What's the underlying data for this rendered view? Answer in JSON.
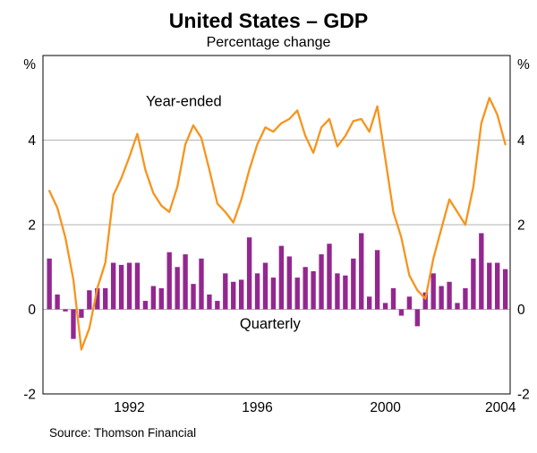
{
  "chart_data": {
    "type": "bar+line",
    "title": "United States – GDP",
    "subtitle": "Percentage change",
    "source": "Source: Thomson Financial",
    "x_start": 1990,
    "x_step": 0.25,
    "x_axis": {
      "min": 1989.8,
      "max": 2004.4,
      "ticks": [
        {
          "x": 1992.5,
          "label": "1992"
        },
        {
          "x": 1996.5,
          "label": "1996"
        },
        {
          "x": 2000.5,
          "label": "2000"
        },
        {
          "x": 2004.1,
          "label": "2004"
        }
      ]
    },
    "y_axis": {
      "min": -2,
      "max": 6,
      "unit": "%",
      "grid_values": [
        0,
        2,
        4
      ],
      "tick_values": [
        4,
        2,
        0,
        -2
      ]
    },
    "colors": {
      "bar": "#93278F",
      "line": "#F7941D",
      "grid": "#b3b3b3",
      "frame": "#000000",
      "text": "#000000"
    },
    "series": [
      {
        "name": "Quarterly",
        "type": "bar",
        "color": "#93278F",
        "label_pos": {
          "x": 1996.9,
          "y": -0.45
        },
        "values": [
          1.2,
          0.35,
          -0.05,
          -0.7,
          -0.2,
          0.45,
          0.5,
          0.5,
          1.1,
          1.05,
          1.1,
          1.1,
          0.2,
          0.55,
          0.5,
          1.35,
          1.0,
          1.3,
          0.6,
          1.2,
          0.35,
          0.2,
          0.85,
          0.65,
          0.7,
          1.7,
          0.85,
          1.1,
          0.75,
          1.5,
          1.25,
          0.75,
          1.0,
          0.9,
          1.3,
          1.55,
          0.85,
          0.8,
          1.2,
          1.8,
          0.3,
          1.4,
          0.15,
          0.5,
          -0.15,
          0.3,
          -0.4,
          0.4,
          0.85,
          0.55,
          0.65,
          0.15,
          0.5,
          1.2,
          1.8,
          1.1,
          1.1,
          0.95
        ]
      },
      {
        "name": "Year-ended",
        "type": "line",
        "color": "#F7941D",
        "label_pos": {
          "x": 1994.2,
          "y": 4.8
        },
        "values": [
          2.8,
          2.4,
          1.7,
          0.7,
          -0.95,
          -0.45,
          0.5,
          1.1,
          2.7,
          3.1,
          3.6,
          4.15,
          3.3,
          2.75,
          2.45,
          2.3,
          2.9,
          3.9,
          4.35,
          4.05,
          3.3,
          2.5,
          2.3,
          2.05,
          2.6,
          3.3,
          3.9,
          4.3,
          4.2,
          4.4,
          4.5,
          4.7,
          4.1,
          3.7,
          4.3,
          4.5,
          3.85,
          4.1,
          4.45,
          4.5,
          4.2,
          4.8,
          3.55,
          2.3,
          1.7,
          0.8,
          0.45,
          0.25,
          1.2,
          1.9,
          2.6,
          2.3,
          2.0,
          2.9,
          4.4,
          5.0,
          4.6,
          3.9
        ]
      }
    ]
  }
}
